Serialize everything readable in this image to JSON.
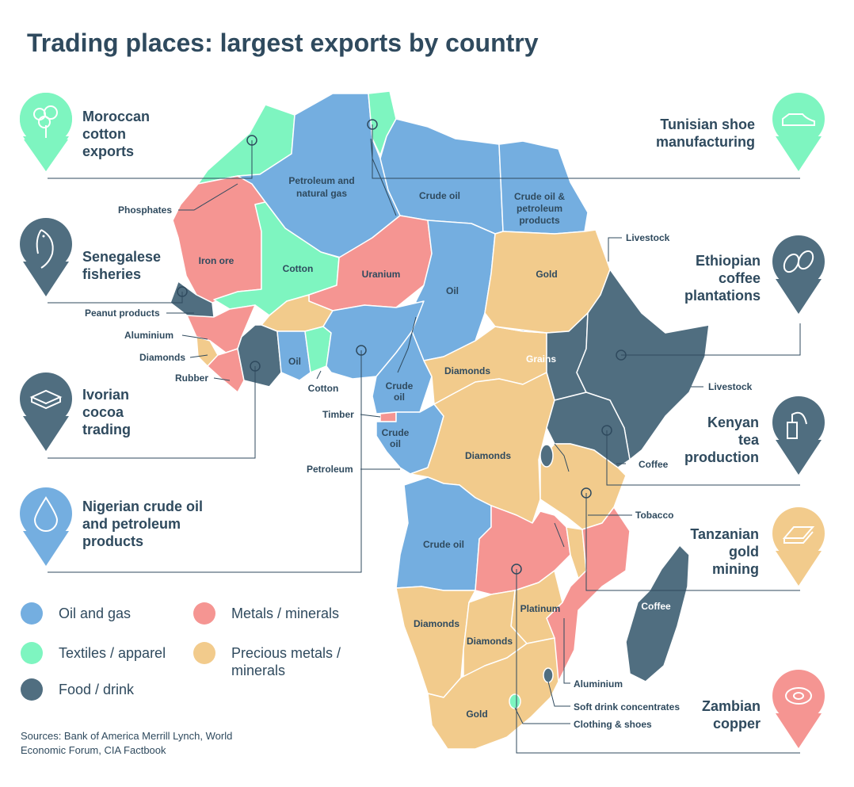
{
  "title": "Trading places: largest exports by country",
  "colors": {
    "oil_gas": "#74aee0",
    "textiles": "#7ef5c0",
    "food": "#506e80",
    "metals": "#f59592",
    "precious": "#f2cb8c",
    "text": "#2f4a5e"
  },
  "callouts": [
    {
      "text": "Moroccan cotton exports",
      "lines": [
        "Moroccan",
        "cotton",
        "exports"
      ],
      "icon": "cotton-plant-icon"
    },
    {
      "text": "Tunisian shoe manufacturing",
      "lines": [
        "Tunisian shoe",
        "manufacturing"
      ],
      "icon": "shoe-icon"
    },
    {
      "text": "Senegalese fisheries",
      "lines": [
        "Senegalese",
        "fisheries"
      ],
      "icon": "fish-icon"
    },
    {
      "text": "Ethiopian coffee plantations",
      "lines": [
        "Ethiopian",
        "coffee",
        "plantations"
      ],
      "icon": "coffee-beans-icon"
    },
    {
      "text": "Ivorian cocoa trading",
      "lines": [
        "Ivorian",
        "cocoa",
        "trading"
      ],
      "icon": "cocoa-bar-icon"
    },
    {
      "text": "Kenyan tea production",
      "lines": [
        "Kenyan",
        "tea",
        "production"
      ],
      "icon": "tea-bag-icon"
    },
    {
      "text": "Nigerian crude oil and petroleum products",
      "lines": [
        "Nigerian crude oil",
        "and petroleum",
        "products"
      ],
      "icon": "oil-drop-icon"
    },
    {
      "text": "Tanzanian gold mining",
      "lines": [
        "Tanzanian",
        "gold",
        "mining"
      ],
      "icon": "gold-bars-icon"
    },
    {
      "text": "Zambian copper",
      "lines": [
        "Zambian",
        "copper"
      ],
      "icon": "copper-wire-icon"
    }
  ],
  "map_labels": {
    "petroleum_gas": [
      "Petroleum and",
      "natural gas"
    ],
    "libya": "Crude oil",
    "egypt": [
      "Crude oil &",
      "petroleum",
      "products"
    ],
    "phosphates": "Phosphates",
    "iron_ore": "Iron ore",
    "mali": "Cotton",
    "niger": "Uranium",
    "chad": "Oil",
    "sudan": "Gold",
    "livestock_n": "Livestock",
    "peanut": "Peanut products",
    "aluminium_w": "Aluminium",
    "diamonds_w": "Diamonds",
    "rubber": "Rubber",
    "ghana": "Oil",
    "benin": "Cotton",
    "south_sudan": "Grains",
    "livestock_e": "Livestock",
    "car": "Diamonds",
    "cameroon": [
      "Crude",
      "oil"
    ],
    "timber": "Timber",
    "gabon": [
      "Crude",
      "oil"
    ],
    "petroleum": "Petroleum",
    "drc": "Diamonds",
    "coffee_uganda": "Coffee",
    "tobacco": "Tobacco",
    "angola": "Crude oil",
    "madagascar": "Coffee",
    "namibia": "Diamonds",
    "botswana": "Diamonds",
    "zimbabwe": "Platinum",
    "south_africa": "Gold",
    "aluminium_s": "Aluminium",
    "soft_drink": "Soft drink concentrates",
    "clothing": "Clothing & shoes"
  },
  "legend": [
    {
      "label": "Oil and gas",
      "color": "#74aee0"
    },
    {
      "label": "Metals / minerals",
      "color": "#f59592"
    },
    {
      "label": "Textiles / apparel",
      "color": "#7ef5c0"
    },
    {
      "label": "Precious metals / minerals",
      "color": "#f2cb8c"
    },
    {
      "label": "Food / drink",
      "color": "#506e80"
    }
  ],
  "sources": "Sources: Bank of America Merrill Lynch, World Economic Forum, CIA Factbook"
}
